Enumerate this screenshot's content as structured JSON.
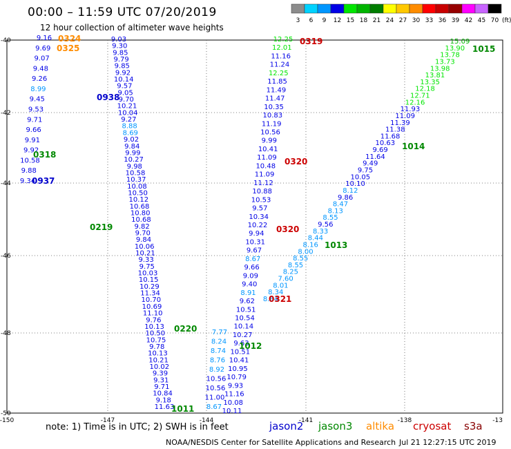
{
  "header": {
    "title": "00:00 – 11:59 UTC 07/20/2019",
    "subtitle": "12 hour collection of altimeter wave heights"
  },
  "colorbar": {
    "ticks": [
      "3",
      "6",
      "9",
      "12",
      "15",
      "18",
      "21",
      "24",
      "27",
      "30",
      "33",
      "36",
      "39",
      "42",
      "45",
      "70"
    ],
    "unit": "(ft)",
    "colors": [
      "#8c8c8c",
      "#00d2ff",
      "#0096ff",
      "#0000e6",
      "#00e600",
      "#00b400",
      "#007d00",
      "#ffff00",
      "#ffc800",
      "#ff8c00",
      "#ff0000",
      "#c80000",
      "#960000",
      "#ff00ff",
      "#c864ff",
      "#000000"
    ]
  },
  "axes": {
    "y_labels": [
      "-40",
      "-42",
      "-44",
      "-46",
      "-48",
      "-50"
    ],
    "x_labels": [
      "-150",
      "-147",
      "-144",
      "-141",
      "-138",
      "-13"
    ]
  },
  "footer": {
    "note": "note:  1) Time is in UTC;  2) SWH is in feet",
    "missions": [
      {
        "name": "jason2",
        "color": "#0000cc"
      },
      {
        "name": "jason3",
        "color": "#008800"
      },
      {
        "name": "altika",
        "color": "#ff8c00"
      },
      {
        "name": "cryosat",
        "color": "#cc0000"
      },
      {
        "name": "s3a",
        "color": "#880000"
      }
    ],
    "credit": "NOAA/NESDIS Center for Satellite Applications and Research",
    "timestamp": "Jul 21 12:27:15 UTC 2019"
  },
  "tracks": [
    {
      "id": "t1",
      "sat_color": "#0000cc",
      "values": [
        "9.03",
        "9.30",
        "9.85",
        "9.79",
        "9.85",
        "9.92",
        "10.14",
        "9.57",
        "9.05",
        "9.70",
        "10.21",
        "10.04",
        "9.27",
        "8.88",
        "8.69",
        "9.02",
        "9.84",
        "9.99",
        "10.27",
        "9.98",
        "10.58",
        "10.37",
        "10.08",
        "10.50",
        "10.12",
        "10.68",
        "10.80",
        "10.68",
        "9.82",
        "9.70",
        "9.84",
        "10.06",
        "10.21",
        "9.33",
        "9.75",
        "10.03",
        "10.15",
        "10.29",
        "11.34",
        "10.70",
        "10.69",
        "11.10",
        "9.76",
        "10.13",
        "10.50",
        "10.75",
        "9.78",
        "10.13",
        "10.21",
        "10.02",
        "9.39",
        "9.31",
        "9.71",
        "10.84",
        "9.18",
        "11.63"
      ]
    },
    {
      "id": "t2",
      "sat_color": "#0000cc",
      "values": [
        "9.16",
        "9.69",
        "9.07",
        "9.48",
        "9.26",
        "8.99",
        "9.45",
        "9.53",
        "9.71",
        "9.66",
        "9.91",
        "9.92",
        "10.58",
        "9.88",
        "9.34"
      ]
    },
    {
      "id": "t3",
      "sat_color": "#0000cc",
      "values": [
        "12.25",
        "12.01",
        "11.16",
        "11.24",
        "12.25",
        "11.85",
        "11.49",
        "11.47",
        "10.35",
        "10.83",
        "11.19",
        "10.56",
        "9.99",
        "10.41",
        "11.09",
        "10.48",
        "11.09",
        "11.12",
        "10.88",
        "10.53",
        "9.57",
        "10.34",
        "10.22",
        "9.94",
        "10.31",
        "9.67",
        "8.67",
        "9.66",
        "9.09",
        "9.40",
        "8.91",
        "9.62",
        "10.51",
        "10.54",
        "10.14",
        "10.27",
        "9.63",
        "10.51",
        "10.41",
        "10.95",
        "10.79",
        "9.93",
        "11.16",
        "10.08",
        "10.11"
      ]
    },
    {
      "id": "t4",
      "sat_color": "#0000cc",
      "values": [
        "15.09",
        "13.90",
        "13.78",
        "13.73",
        "13.98",
        "13.81",
        "13.35",
        "12.18",
        "12.71",
        "12.16",
        "11.93",
        "11.09",
        "11.39",
        "11.38",
        "11.68",
        "10.63",
        "9.69",
        "11.64",
        "9.49",
        "9.75",
        "10.05",
        "10.10",
        "8.12",
        "9.86",
        "8.47",
        "8.13",
        "8.55",
        "9.56",
        "8.33",
        "8.44",
        "8.16",
        "8.00",
        "8.55",
        "8.55",
        "8.25",
        "7.60",
        "8.01",
        "8.34",
        "8.64"
      ]
    },
    {
      "id": "t5",
      "sat_color": "#0000cc",
      "values": [
        "7.77",
        "8.24",
        "8.74",
        "8.76",
        "8.92",
        "10.56",
        "10.56",
        "11.00",
        "8.67"
      ]
    }
  ],
  "pass_labels": [
    {
      "text": "0324",
      "color": "#ff8c00"
    },
    {
      "text": "0325",
      "color": "#ff8c00"
    },
    {
      "text": "0938",
      "color": "#0000cc"
    },
    {
      "text": "0318",
      "color": "#008800"
    },
    {
      "text": "0937",
      "color": "#0000cc"
    },
    {
      "text": "0219",
      "color": "#008800"
    },
    {
      "text": "0220",
      "color": "#008800"
    },
    {
      "text": "1011",
      "color": "#008800"
    },
    {
      "text": "0319",
      "color": "#cc0000"
    },
    {
      "text": "0320",
      "color": "#cc0000"
    },
    {
      "text": "0320",
      "color": "#cc0000"
    },
    {
      "text": "0321",
      "color": "#cc0000"
    },
    {
      "text": "1012",
      "color": "#008800"
    },
    {
      "text": "1013",
      "color": "#008800"
    },
    {
      "text": "1014",
      "color": "#008800"
    },
    {
      "text": "1015",
      "color": "#008800"
    }
  ]
}
